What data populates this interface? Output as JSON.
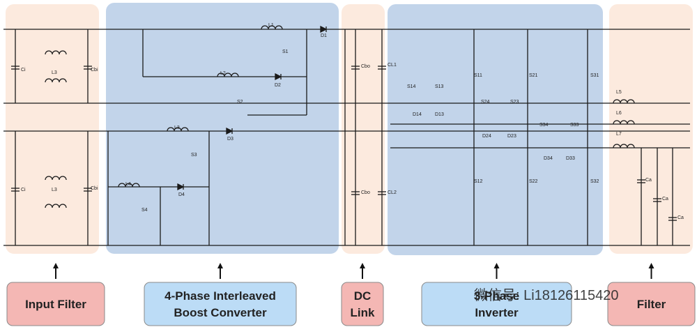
{
  "blocks": [
    {
      "lines": [
        "Input Filter"
      ]
    },
    {
      "lines": [
        "4-Phase Interleaved",
        "Boost Converter"
      ]
    },
    {
      "lines": [
        "DC",
        "Link"
      ]
    },
    {
      "lines": [
        "3-Phase",
        "Inverter"
      ]
    },
    {
      "lines": [
        "Filter"
      ]
    }
  ],
  "components": [
    "Ci",
    "L3",
    "Cbi",
    "Ci",
    "L3",
    "Cbi",
    "L1",
    "D1",
    "S1",
    "L2",
    "D2",
    "S2",
    "L3",
    "D3",
    "S3",
    "L4",
    "D4",
    "S4",
    "Cbo",
    "CL1",
    "Cbo",
    "CL2",
    "S11",
    "S21",
    "S31",
    "S14",
    "S13",
    "D14",
    "D13",
    "S24",
    "S23",
    "D24",
    "D23",
    "S34",
    "S33",
    "D34",
    "D33",
    "S12",
    "S22",
    "S32",
    "L5",
    "L6",
    "L7",
    "Ca",
    "Ca",
    "Ca"
  ],
  "watermark": "微信号: Li18126115420"
}
